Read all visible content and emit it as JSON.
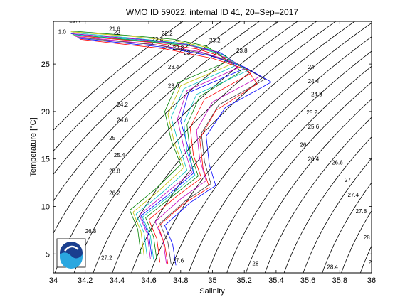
{
  "chart_data": {
    "type": "line",
    "title": "WMO ID 59022, internal ID 41, 20–Sep–2017",
    "xlabel": "Salinity",
    "ylabel": "Temperature [°C]",
    "xlim": [
      34,
      36
    ],
    "ylim": [
      3,
      29.5
    ],
    "grid": false,
    "x_ticks": [
      "34",
      "34.2",
      "34.4",
      "34.6",
      "34.8",
      "35",
      "35.2",
      "35.4",
      "35.6",
      "35.8",
      "36"
    ],
    "y_ticks": [
      "5",
      "10",
      "15",
      "20",
      "25"
    ],
    "contour_labels": [
      {
        "text": "21.4",
        "s": 34.1,
        "t": 29.4
      },
      {
        "text": "1.0",
        "s": 34.03,
        "t": 28.2
      },
      {
        "text": "21.6",
        "s": 34.35,
        "t": 28.5
      },
      {
        "text": "22",
        "s": 34.38,
        "t": 28.1
      },
      {
        "text": "22.2",
        "s": 34.68,
        "t": 28.0
      },
      {
        "text": "22.4",
        "s": 34.62,
        "t": 27.4
      },
      {
        "text": "22.8",
        "s": 34.75,
        "t": 26.5
      },
      {
        "text": "23",
        "s": 34.82,
        "t": 26.0
      },
      {
        "text": "23.2",
        "s": 34.98,
        "t": 27.3
      },
      {
        "text": "23.4",
        "s": 34.72,
        "t": 24.5
      },
      {
        "text": "23.6",
        "s": 34.72,
        "t": 22.5
      },
      {
        "text": "23.8",
        "s": 35.15,
        "t": 26.2
      },
      {
        "text": "24",
        "s": 35.6,
        "t": 24.5
      },
      {
        "text": "24.2",
        "s": 34.4,
        "t": 20.5
      },
      {
        "text": "24.4",
        "s": 35.6,
        "t": 23.0
      },
      {
        "text": "24.6",
        "s": 34.4,
        "t": 18.9
      },
      {
        "text": "24.8",
        "s": 35.62,
        "t": 21.6
      },
      {
        "text": "25",
        "s": 34.35,
        "t": 17.0
      },
      {
        "text": "25.2",
        "s": 35.59,
        "t": 19.7
      },
      {
        "text": "25.4",
        "s": 34.38,
        "t": 15.2
      },
      {
        "text": "25.6",
        "s": 35.6,
        "t": 18.2
      },
      {
        "text": "25.8",
        "s": 34.35,
        "t": 13.5
      },
      {
        "text": "26",
        "s": 35.55,
        "t": 16.3
      },
      {
        "text": "26.2",
        "s": 34.35,
        "t": 11.2
      },
      {
        "text": "26.4",
        "s": 35.6,
        "t": 14.8
      },
      {
        "text": "26.6",
        "s": 35.75,
        "t": 14.4
      },
      {
        "text": "26.8",
        "s": 34.2,
        "t": 7.2
      },
      {
        "text": "27",
        "s": 35.83,
        "t": 12.6
      },
      {
        "text": "27.2",
        "s": 34.3,
        "t": 4.4
      },
      {
        "text": "27.4",
        "s": 35.85,
        "t": 11.0
      },
      {
        "text": "27.6",
        "s": 34.75,
        "t": 4.1
      },
      {
        "text": "27.8",
        "s": 35.9,
        "t": 9.3
      },
      {
        "text": "28",
        "s": 35.25,
        "t": 3.8
      },
      {
        "text": "28.2",
        "s": 35.95,
        "t": 6.5
      },
      {
        "text": "28.4",
        "s": 35.72,
        "t": 3.4
      },
      {
        "text": "28",
        "s": 35.98,
        "t": 3.9
      }
    ],
    "series": [
      {
        "color": "#0000ff",
        "s": [
          34.11,
          34.55,
          34.84,
          35.05,
          35.2,
          34.85,
          34.8,
          34.85,
          34.88,
          34.72,
          34.55,
          34.6,
          34.62
        ],
        "t": [
          28.2,
          27.6,
          27.1,
          26.2,
          24.5,
          22.0,
          19.0,
          16.0,
          13.5,
          11.2,
          9.0,
          7.0,
          4.5
        ]
      },
      {
        "color": "#008000",
        "s": [
          34.12,
          34.58,
          34.87,
          35.08,
          35.18,
          34.92,
          34.84,
          34.86,
          34.91,
          34.75,
          34.58,
          34.63,
          34.65
        ],
        "t": [
          28.1,
          27.4,
          26.9,
          25.9,
          24.2,
          21.6,
          18.6,
          15.7,
          13.2,
          11.1,
          8.8,
          6.8,
          4.3
        ]
      },
      {
        "color": "#ff0000",
        "s": [
          34.13,
          34.6,
          34.9,
          35.1,
          35.24,
          34.95,
          34.86,
          34.88,
          34.93,
          34.77,
          34.6,
          34.65,
          34.67
        ],
        "t": [
          28.0,
          27.3,
          26.6,
          25.6,
          24.0,
          21.3,
          18.3,
          15.4,
          13.0,
          11.0,
          8.6,
          6.6,
          4.1
        ]
      },
      {
        "color": "#00bfbf",
        "s": [
          34.12,
          34.52,
          34.8,
          35.0,
          35.14,
          34.82,
          34.74,
          34.79,
          34.84,
          34.68,
          34.52,
          34.57,
          34.59
        ],
        "t": [
          28.3,
          27.7,
          27.2,
          26.5,
          24.8,
          22.4,
          19.4,
          16.4,
          13.8,
          11.4,
          9.2,
          7.2,
          4.6
        ]
      },
      {
        "color": "#bf00bf",
        "s": [
          34.14,
          34.62,
          34.92,
          35.14,
          35.3,
          35.0,
          34.9,
          34.92,
          34.96,
          34.8,
          34.64,
          34.69,
          34.71
        ],
        "t": [
          27.9,
          27.1,
          26.3,
          25.2,
          23.7,
          21.0,
          18.0,
          15.0,
          12.7,
          10.8,
          8.4,
          6.4,
          4.0
        ]
      },
      {
        "color": "#bfbf00",
        "s": [
          34.11,
          34.5,
          34.78,
          34.98,
          35.12,
          34.8,
          34.72,
          34.76,
          34.82,
          34.66,
          34.5,
          34.55,
          34.57
        ],
        "t": [
          28.4,
          27.9,
          27.4,
          26.7,
          25.0,
          22.7,
          19.7,
          16.7,
          14.1,
          11.6,
          9.4,
          7.4,
          4.8
        ]
      },
      {
        "color": "#404040",
        "s": [
          34.15,
          34.65,
          34.95,
          35.16,
          35.33,
          35.04,
          34.93,
          34.95,
          34.99,
          34.83,
          34.67,
          34.72,
          34.74
        ],
        "t": [
          27.8,
          27.0,
          26.1,
          25.0,
          23.4,
          20.7,
          17.7,
          14.7,
          12.4,
          10.6,
          8.2,
          6.2,
          3.9
        ]
      },
      {
        "color": "#0000ff",
        "s": [
          34.16,
          34.68,
          34.98,
          35.2,
          35.37,
          35.08,
          34.96,
          34.98,
          35.02,
          34.86,
          34.7,
          34.75,
          34.77
        ],
        "t": [
          27.7,
          26.8,
          25.9,
          24.7,
          23.1,
          20.4,
          17.4,
          14.4,
          12.2,
          10.4,
          8.0,
          6.0,
          3.8
        ]
      },
      {
        "color": "#008000",
        "s": [
          34.1,
          34.48,
          34.76,
          34.96,
          35.1,
          34.78,
          34.7,
          34.74,
          34.8,
          34.64,
          34.48,
          34.53,
          34.55
        ],
        "t": [
          28.5,
          28.0,
          27.6,
          26.9,
          25.3,
          23.0,
          20.0,
          17.0,
          14.4,
          11.8,
          9.6,
          7.6,
          5.0
        ]
      },
      {
        "color": "#ff0000",
        "s": [
          34.17,
          34.7,
          35.0,
          35.22,
          35.28,
          35.02,
          34.92,
          34.94,
          34.98,
          34.82,
          34.66,
          34.7,
          34.72
        ],
        "t": [
          27.6,
          26.6,
          25.6,
          24.4,
          22.9,
          20.1,
          17.1,
          14.1,
          12.0,
          10.3,
          7.9,
          5.9,
          3.9
        ]
      },
      {
        "color": "#00bfbf",
        "s": [
          34.13,
          34.56,
          34.86,
          35.06,
          35.22,
          34.9,
          34.82,
          34.84,
          34.89,
          34.73,
          34.56,
          34.61,
          34.63
        ],
        "t": [
          28.1,
          27.5,
          27.0,
          26.0,
          24.3,
          21.8,
          18.8,
          15.8,
          13.3,
          11.1,
          8.9,
          6.9,
          4.4
        ]
      },
      {
        "color": "#bf00bf",
        "s": [
          34.12,
          34.54,
          34.82,
          35.02,
          35.16,
          34.84,
          34.78,
          34.82,
          34.87,
          34.7,
          34.54,
          34.59,
          34.61
        ],
        "t": [
          28.2,
          27.6,
          27.1,
          26.3,
          24.6,
          22.2,
          19.2,
          16.2,
          13.6,
          11.3,
          9.1,
          7.1,
          4.5
        ]
      }
    ]
  }
}
